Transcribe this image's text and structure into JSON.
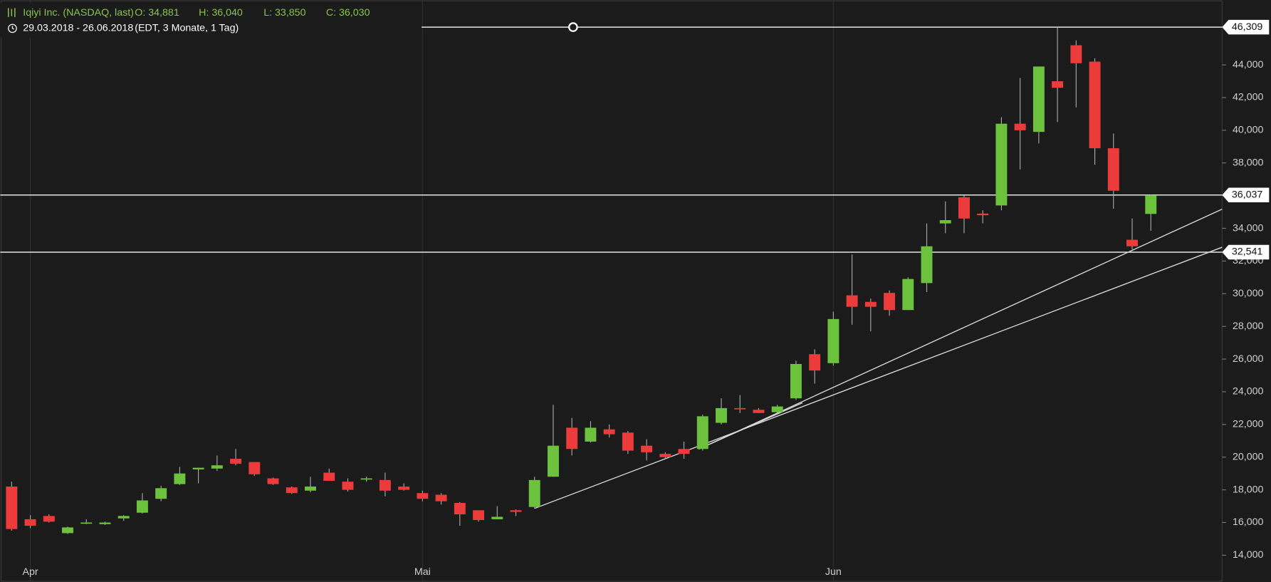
{
  "chart_data": {
    "type": "candlestick",
    "title": "Iqiyi Inc. (NASDAQ, last)",
    "ohlc_summary": [
      "O: 34,881",
      "H: 36,040",
      "L: 33,850",
      "C: 36,030"
    ],
    "period": "29.03.2018 - 26.06.2018",
    "period_details": "(EDT, 3 Monate, 1 Tag)",
    "categories": [
      null,
      "Apr",
      null,
      null,
      null,
      null,
      null,
      null,
      null,
      null,
      null,
      null,
      null,
      null,
      null,
      null,
      null,
      null,
      null,
      null,
      null,
      null,
      "Mai",
      null,
      null,
      null,
      null,
      null,
      null,
      null,
      null,
      null,
      null,
      null,
      null,
      null,
      null,
      null,
      null,
      null,
      null,
      null,
      null,
      null,
      "Jun",
      null,
      null,
      null,
      null,
      null,
      null,
      null,
      null,
      null,
      null,
      null,
      null,
      null,
      null,
      null,
      null,
      null
    ],
    "open": [
      18200,
      16200,
      16400,
      15350,
      15950,
      15900,
      16250,
      16600,
      17450,
      18350,
      19250,
      19300,
      19900,
      19700,
      18700,
      18150,
      17950,
      19050,
      18500,
      18650,
      18600,
      18200,
      17800,
      17700,
      17200,
      16750,
      16200,
      16750,
      16950,
      18800,
      21800,
      20950,
      21700,
      21500,
      20700,
      20200,
      20500,
      20500,
      22100,
      23000,
      22900,
      22750,
      23600,
      26300,
      25750,
      29900,
      29500,
      30050,
      29000,
      30650,
      34300,
      35900,
      34900,
      35400,
      40400,
      39900,
      43000,
      45200,
      44200,
      38900,
      33300,
      34881
    ],
    "high": [
      18500,
      16450,
      16500,
      15750,
      16200,
      16050,
      16450,
      17800,
      18250,
      19400,
      19350,
      20100,
      20500,
      19700,
      18750,
      18200,
      18800,
      19300,
      18700,
      18800,
      19050,
      18400,
      17950,
      17800,
      17250,
      16750,
      17000,
      16800,
      18800,
      23200,
      22400,
      22200,
      22000,
      21600,
      21100,
      20300,
      20950,
      22600,
      23600,
      23800,
      23000,
      23200,
      25900,
      26600,
      28900,
      32400,
      29700,
      30200,
      31000,
      34300,
      35650,
      36000,
      35100,
      40800,
      43200,
      43900,
      46300,
      45500,
      44400,
      39800,
      34600,
      36040
    ],
    "low": [
      15500,
      15650,
      16000,
      15300,
      15900,
      15850,
      16100,
      16550,
      17300,
      18300,
      18400,
      19150,
      19500,
      18850,
      18300,
      17750,
      17850,
      18550,
      17900,
      18500,
      17600,
      17950,
      17300,
      17100,
      15800,
      16050,
      16200,
      16400,
      16850,
      18800,
      20100,
      20900,
      21200,
      20200,
      19800,
      19900,
      19900,
      20400,
      22000,
      22700,
      22700,
      22700,
      23500,
      24500,
      25600,
      28100,
      27700,
      28650,
      29000,
      30100,
      33700,
      33700,
      34300,
      35100,
      37600,
      39200,
      40500,
      41400,
      37900,
      35200,
      32700,
      33850
    ],
    "close": [
      15600,
      15800,
      16050,
      15700,
      16000,
      16000,
      16400,
      17350,
      18100,
      19000,
      19350,
      19500,
      19600,
      18950,
      18350,
      17800,
      18200,
      18550,
      18000,
      18700,
      17950,
      18000,
      17450,
      17300,
      16500,
      16150,
      16350,
      16650,
      18600,
      20700,
      20500,
      21800,
      21400,
      20400,
      20300,
      20000,
      20200,
      22500,
      23000,
      22950,
      22700,
      23100,
      25700,
      25300,
      28450,
      29200,
      29200,
      29000,
      30900,
      32900,
      34500,
      34600,
      34800,
      40400,
      40000,
      43900,
      42600,
      44100,
      38900,
      36300,
      32900,
      36030
    ],
    "up_color": "#6cc23c",
    "down_color": "#ec3b3b",
    "ylim": [
      12360,
      47970
    ],
    "yticks": [
      {
        "value": 14000,
        "label": "14,000"
      },
      {
        "value": 16000,
        "label": "16,000"
      },
      {
        "value": 18000,
        "label": "18,000"
      },
      {
        "value": 20000,
        "label": "20,000"
      },
      {
        "value": 22000,
        "label": "22,000"
      },
      {
        "value": 24000,
        "label": "24,000"
      },
      {
        "value": 26000,
        "label": "26,000"
      },
      {
        "value": 28000,
        "label": "28,000"
      },
      {
        "value": 30000,
        "label": "30,000"
      },
      {
        "value": 32000,
        "label": "32,000"
      },
      {
        "value": 34000,
        "label": "34,000"
      },
      {
        "value": 36000,
        "label": "36,000"
      },
      {
        "value": 38000,
        "label": "38,000"
      },
      {
        "value": 40000,
        "label": "40,000"
      },
      {
        "value": 42000,
        "label": "42,000"
      },
      {
        "value": 44000,
        "label": "44,000"
      }
    ],
    "levels": [
      {
        "value": 46309,
        "label": "46,309"
      },
      {
        "value": 36037,
        "label": "36,037"
      },
      {
        "value": 32541,
        "label": "32,541"
      }
    ]
  }
}
